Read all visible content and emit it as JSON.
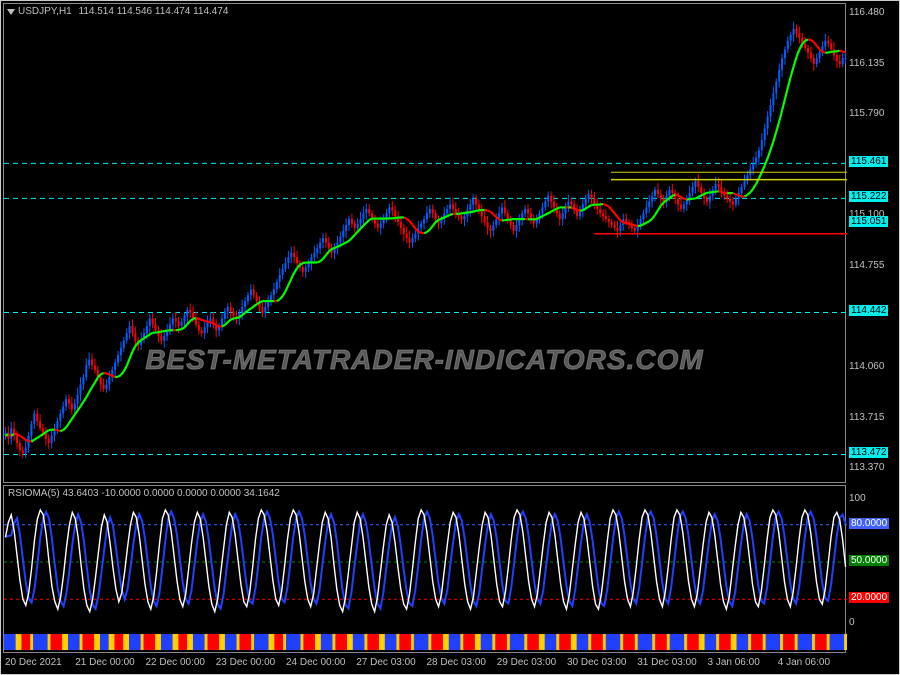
{
  "header": {
    "symbol": "USDJPY,H1",
    "ohlc": "114.514 114.546 114.474 114.474"
  },
  "indicator_header": "RSIOMA(5) 43.6403 -10.0000 0.0000 0.0000 0.0000 34.1642",
  "watermark": "BEST-METATRADER-INDICATORS.COM",
  "colors": {
    "background": "#000000",
    "grid": "#303030",
    "text": "#c0c0c0",
    "ma_green": "#00ff00",
    "ma_red": "#ff0000",
    "candle_up": "#0060ff",
    "candle_down": "#ff0000",
    "horiz_line": "#00eeee",
    "rsi_line1": "#ffffff",
    "rsi_line2": "#2040ff",
    "level_80_bg": "#4060ff",
    "level_50_bg": "#008000",
    "level_20_bg": "#ff0000",
    "bar_blue": "#2040ff",
    "bar_red": "#ff0000",
    "bar_yellow": "#ffd000",
    "tag_cyan": "#00eeee",
    "support_yellow": "#d0d000"
  },
  "price_axis": {
    "min": 113.27,
    "max": 116.55,
    "ticks": [
      116.48,
      116.135,
      115.79,
      115.461,
      115.222,
      115.1,
      115.051,
      114.755,
      114.442,
      114.06,
      113.715,
      113.472,
      113.37
    ],
    "highlighted": {
      "115.461": "#00eeee",
      "115.222": "#00eeee",
      "115.051": "#00eeee",
      "114.442": "#00eeee",
      "113.472": "#00eeee"
    }
  },
  "horizontal_lines": [
    115.461,
    115.222,
    114.442,
    113.472
  ],
  "x_ticks": [
    "20 Dec 2021",
    "21 Dec 00:00",
    "22 Dec 00:00",
    "23 Dec 00:00",
    "24 Dec 00:00",
    "27 Dec 03:00",
    "28 Dec 03:00",
    "29 Dec 03:00",
    "30 Dec 03:00",
    "31 Dec 03:00",
    "3 Jan 06:00",
    "4 Jan 06:00"
  ],
  "indicator_axis": {
    "ticks": [
      {
        "v": 100,
        "bg": null
      },
      {
        "v": 80.0,
        "bg": "#4060ff"
      },
      {
        "v": 50.0,
        "bg": "#008000"
      },
      {
        "v": 20.0,
        "bg": "#ff0000"
      },
      {
        "v": 0,
        "bg": null
      }
    ]
  },
  "candles": {
    "count": 290,
    "base_prices": [
      113.6,
      113.62,
      113.58,
      113.65,
      113.6,
      113.55,
      113.5,
      113.48,
      113.52,
      113.6,
      113.68,
      113.75,
      113.7,
      113.65,
      113.62,
      113.58,
      113.55,
      113.6,
      113.65,
      113.7,
      113.75,
      113.8,
      113.85,
      113.82,
      113.78,
      113.82,
      113.88,
      113.95,
      114.0,
      114.08,
      114.12,
      114.08,
      114.05,
      114.0,
      113.95,
      113.92,
      113.95,
      114.0,
      114.05,
      114.1,
      114.15,
      114.2,
      114.25,
      114.3,
      114.35,
      114.3,
      114.25,
      114.22,
      114.26,
      114.3,
      114.35,
      114.4,
      114.36,
      114.32,
      114.28,
      114.25,
      114.28,
      114.32,
      114.36,
      114.4,
      114.38,
      114.35,
      114.38,
      114.42,
      114.46,
      114.44,
      114.4,
      114.36,
      114.32,
      114.3,
      114.34,
      114.38,
      114.4,
      114.36,
      114.32,
      114.35,
      114.4,
      114.45,
      114.48,
      114.45,
      114.42,
      114.4,
      114.44,
      114.48,
      114.52,
      114.56,
      114.6,
      114.56,
      114.52,
      114.48,
      114.44,
      114.48,
      114.52,
      114.56,
      114.6,
      114.65,
      114.7,
      114.74,
      114.78,
      114.82,
      114.85,
      114.82,
      114.78,
      114.75,
      114.72,
      114.75,
      114.78,
      114.82,
      114.85,
      114.88,
      114.92,
      114.95,
      114.92,
      114.88,
      114.85,
      114.88,
      114.92,
      114.96,
      115.0,
      115.04,
      115.08,
      115.05,
      115.02,
      115.05,
      115.08,
      115.12,
      115.15,
      115.12,
      115.08,
      115.05,
      115.02,
      115.05,
      115.08,
      115.12,
      115.16,
      115.14,
      115.1,
      115.06,
      115.02,
      114.98,
      114.95,
      114.92,
      114.95,
      114.98,
      115.02,
      115.05,
      115.08,
      115.12,
      115.15,
      115.12,
      115.08,
      115.05,
      115.08,
      115.12,
      115.15,
      115.18,
      115.15,
      115.12,
      115.1,
      115.08,
      115.1,
      115.14,
      115.18,
      115.22,
      115.18,
      115.14,
      115.1,
      115.06,
      115.02,
      115.0,
      115.04,
      115.08,
      115.12,
      115.16,
      115.12,
      115.08,
      115.04,
      115.0,
      115.04,
      115.08,
      115.12,
      115.15,
      115.12,
      115.08,
      115.05,
      115.08,
      115.12,
      115.16,
      115.2,
      115.24,
      115.2,
      115.16,
      115.12,
      115.08,
      115.12,
      115.16,
      115.2,
      115.18,
      115.14,
      115.1,
      115.14,
      115.18,
      115.22,
      115.25,
      115.22,
      115.18,
      115.15,
      115.12,
      115.1,
      115.08,
      115.06,
      115.04,
      115.02,
      115.0,
      115.04,
      115.08,
      115.06,
      115.04,
      115.02,
      115.0,
      115.04,
      115.08,
      115.12,
      115.16,
      115.2,
      115.24,
      115.28,
      115.25,
      115.22,
      115.2,
      115.24,
      115.28,
      115.26,
      115.22,
      115.18,
      115.15,
      115.18,
      115.22,
      115.26,
      115.3,
      115.34,
      115.3,
      115.26,
      115.22,
      115.2,
      115.24,
      115.28,
      115.32,
      115.3,
      115.26,
      115.24,
      115.22,
      115.2,
      115.18,
      115.22,
      115.26,
      115.3,
      115.34,
      115.38,
      115.42,
      115.46,
      115.5,
      115.55,
      115.62,
      115.7,
      115.78,
      115.86,
      115.94,
      116.02,
      116.1,
      116.18,
      116.24,
      116.3,
      116.34,
      116.38,
      116.35,
      116.32,
      116.28,
      116.25,
      116.22,
      116.18,
      116.14,
      116.18,
      116.22,
      116.26,
      116.3,
      116.28,
      116.24,
      116.2,
      116.16,
      116.14,
      116.18
    ]
  },
  "rsi": {
    "values": [
      70,
      82,
      88,
      75,
      55,
      35,
      20,
      15,
      25,
      45,
      68,
      85,
      92,
      88,
      72,
      50,
      30,
      18,
      12,
      22,
      40,
      62,
      80,
      90,
      85,
      70,
      48,
      28,
      15,
      10,
      20,
      38,
      58,
      78,
      88,
      82,
      65,
      45,
      28,
      18,
      25,
      42,
      62,
      80,
      90,
      86,
      72,
      52,
      32,
      18,
      12,
      22,
      42,
      65,
      85,
      92,
      88,
      75,
      55,
      35,
      20,
      14,
      24,
      44,
      65,
      82,
      90,
      85,
      70,
      50,
      30,
      16,
      10,
      20,
      40,
      60,
      80,
      90,
      86,
      72,
      52,
      32,
      18,
      14,
      25,
      45,
      68,
      85,
      92,
      88,
      75,
      55,
      35,
      20,
      15,
      26,
      46,
      68,
      85,
      92,
      88,
      74,
      54,
      34,
      20,
      14,
      24,
      44,
      64,
      82,
      90,
      85,
      70,
      48,
      28,
      15,
      10,
      22,
      42,
      62,
      82,
      90,
      85,
      70,
      50,
      30,
      16,
      10,
      22,
      42,
      62,
      80,
      88,
      82,
      66,
      46,
      28,
      16,
      12,
      24,
      44,
      66,
      85,
      92,
      88,
      74,
      54,
      34,
      20,
      14,
      24,
      44,
      64,
      82,
      90,
      86,
      72,
      52,
      32,
      18,
      12,
      22,
      42,
      62,
      80,
      90,
      86,
      72,
      52,
      32,
      18,
      14,
      26,
      46,
      68,
      86,
      92,
      88,
      74,
      54,
      34,
      20,
      14,
      24,
      44,
      64,
      82,
      90,
      86,
      72,
      52,
      32,
      18,
      12,
      24,
      44,
      64,
      82,
      90,
      85,
      70,
      50,
      30,
      16,
      12,
      24,
      44,
      66,
      85,
      92,
      88,
      74,
      54,
      34,
      20,
      14,
      26,
      46,
      68,
      86,
      92,
      88,
      74,
      54,
      34,
      20,
      14,
      26,
      46,
      68,
      86,
      92,
      88,
      74,
      54,
      34,
      20,
      14,
      24,
      44,
      64,
      82,
      90,
      86,
      72,
      52,
      32,
      18,
      12,
      22,
      42,
      62,
      80,
      90,
      86,
      72,
      52,
      32,
      18,
      14,
      26,
      46,
      68,
      86,
      92,
      88,
      74,
      54,
      34,
      20,
      14,
      26,
      46,
      68,
      86,
      92,
      88,
      74,
      54,
      34,
      20,
      16,
      28,
      48,
      70,
      86,
      90,
      84,
      68,
      46
    ]
  }
}
